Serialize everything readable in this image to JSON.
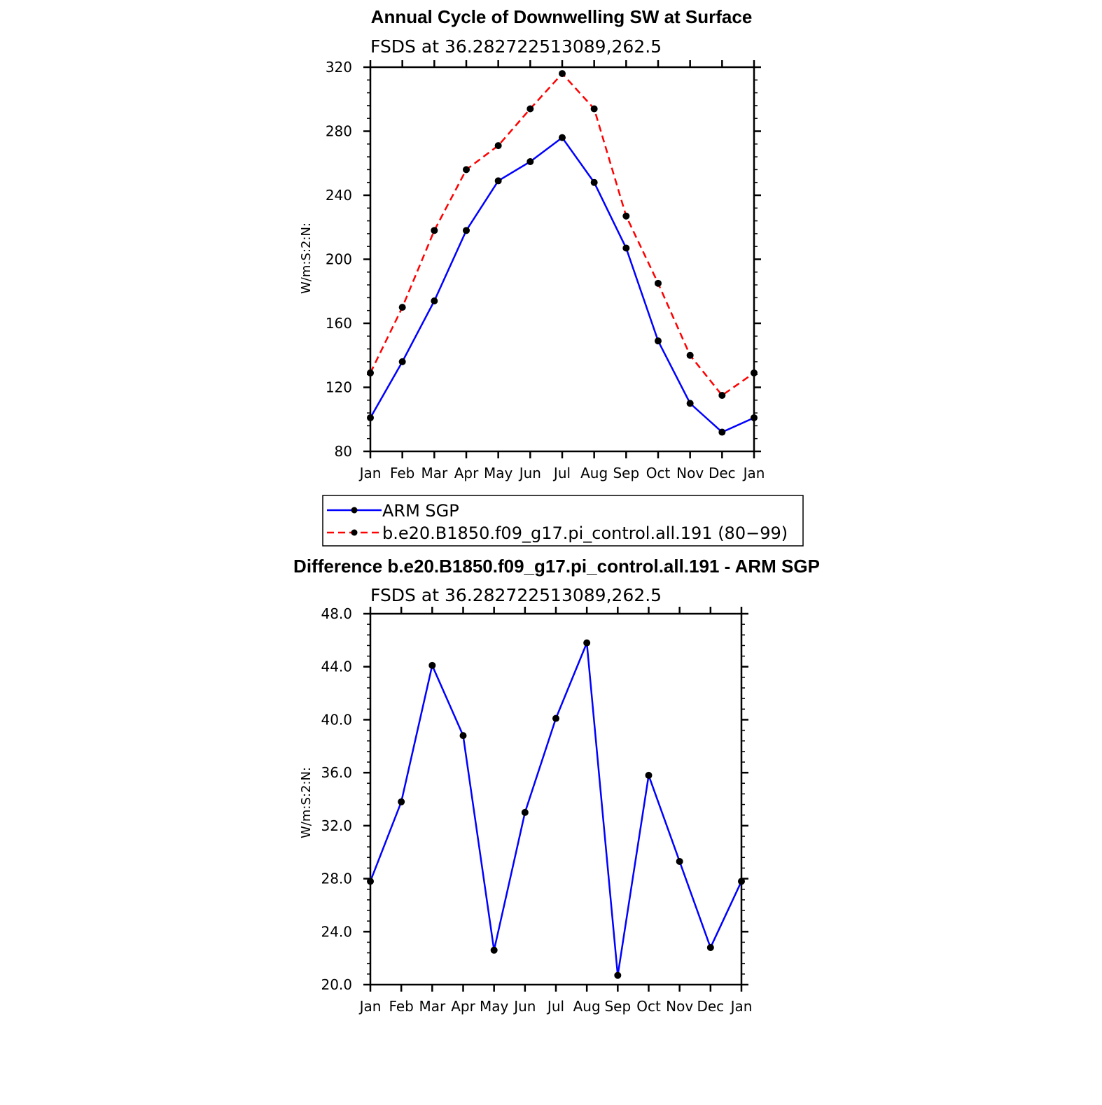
{
  "chart_data": [
    {
      "type": "line",
      "title": "Annual Cycle of Downwelling SW at Surface",
      "subtitle": "FSDS at 36.282722513089,262.5",
      "ylabel": "W/m:S:2:N:",
      "xlabel": "",
      "ylim": [
        80,
        320
      ],
      "yticks": [
        80,
        120,
        160,
        200,
        240,
        280,
        320
      ],
      "categories": [
        "Jan",
        "Feb",
        "Mar",
        "Apr",
        "May",
        "Jun",
        "Jul",
        "Aug",
        "Sep",
        "Oct",
        "Nov",
        "Dec",
        "Jan"
      ],
      "legend_position": "below",
      "series": [
        {
          "name": "ARM SGP",
          "color": "#0000ff",
          "style": "solid",
          "values": [
            101,
            136,
            174,
            218,
            249,
            261,
            276,
            248,
            207,
            149,
            110,
            92,
            101
          ]
        },
        {
          "name": "b.e20.B1850.f09_g17.pi_control.all.191 (80−99)",
          "color": "#ff0000",
          "style": "dashed",
          "values": [
            129,
            170,
            218,
            256,
            271,
            294,
            316,
            294,
            227,
            185,
            140,
            115,
            129
          ]
        }
      ]
    },
    {
      "type": "line",
      "title": "Difference b.e20.B1850.f09_g17.pi_control.all.191 - ARM SGP",
      "subtitle": "FSDS at 36.282722513089,262.5",
      "ylabel": "W/m:S:2:N:",
      "xlabel": "",
      "ylim": [
        20.0,
        48.0
      ],
      "yticks": [
        "20.0",
        "24.0",
        "28.0",
        "32.0",
        "36.0",
        "40.0",
        "44.0",
        "48.0"
      ],
      "categories": [
        "Jan",
        "Feb",
        "Mar",
        "Apr",
        "May",
        "Jun",
        "Jul",
        "Aug",
        "Sep",
        "Oct",
        "Nov",
        "Dec",
        "Jan"
      ],
      "series": [
        {
          "color": "#0000ff",
          "style": "solid",
          "values": [
            27.8,
            33.8,
            44.1,
            38.8,
            22.6,
            33.0,
            40.1,
            45.8,
            20.7,
            35.8,
            29.3,
            22.8,
            27.8
          ]
        }
      ]
    }
  ]
}
